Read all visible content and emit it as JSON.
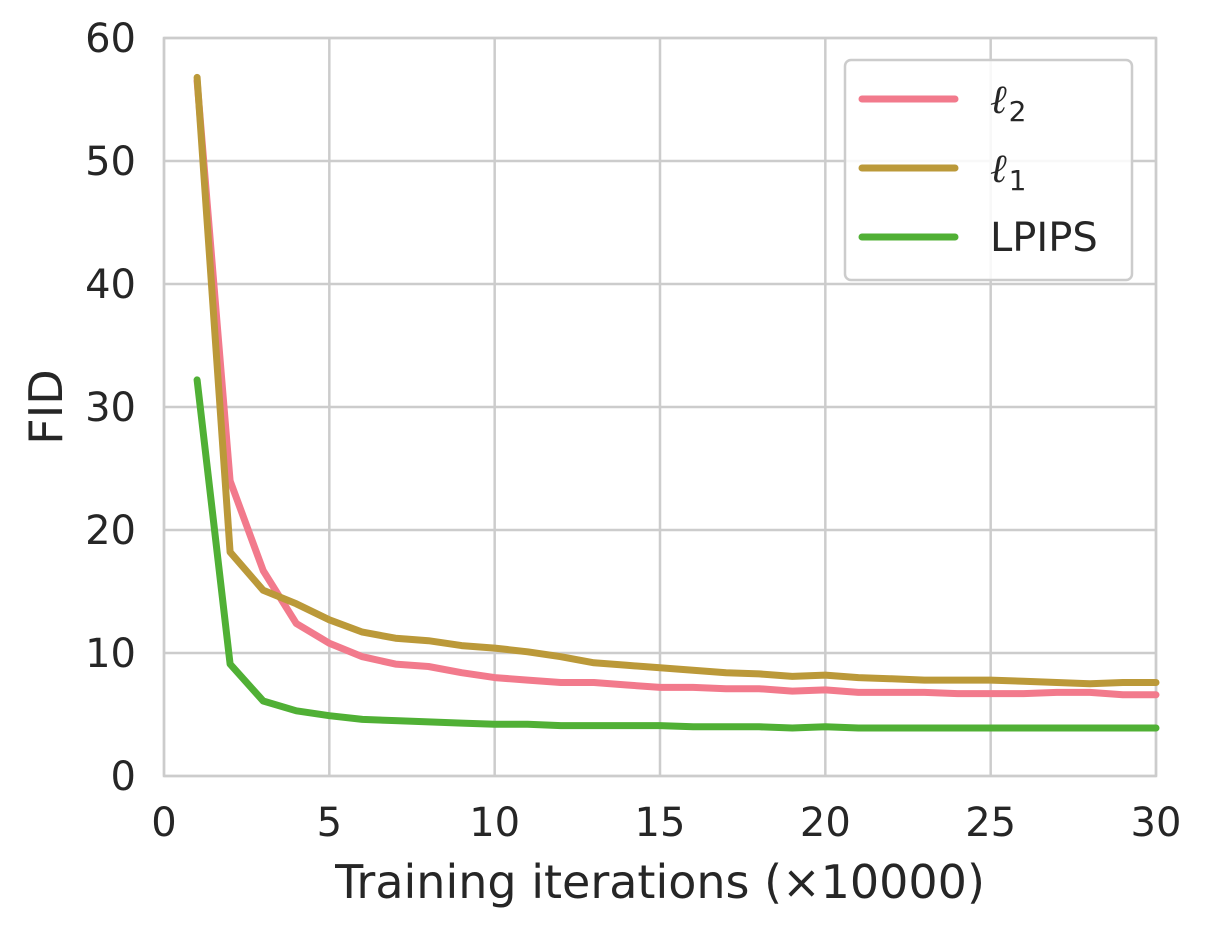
{
  "chart_data": {
    "type": "line",
    "title": "",
    "xlabel": "Training iterations (×10000)",
    "ylabel": "FID",
    "xlim": [
      0,
      30
    ],
    "ylim": [
      0,
      60
    ],
    "xticks": [
      "0",
      "5",
      "10",
      "15",
      "20",
      "25",
      "30"
    ],
    "yticks": [
      "0",
      "10",
      "20",
      "30",
      "40",
      "50",
      "60"
    ],
    "grid": true,
    "legend_position": "top-right",
    "x": [
      1,
      2,
      3,
      4,
      5,
      6,
      7,
      8,
      9,
      10,
      11,
      12,
      13,
      14,
      15,
      16,
      17,
      18,
      19,
      20,
      21,
      22,
      23,
      24,
      25,
      26,
      27,
      28,
      29,
      30
    ],
    "series": [
      {
        "name": "ℓ2",
        "name_base": "ℓ",
        "name_sub": "2",
        "color": "#f27a8c",
        "values": [
          56.5,
          24.0,
          16.7,
          12.4,
          10.8,
          9.7,
          9.1,
          8.9,
          8.4,
          8.0,
          7.8,
          7.6,
          7.6,
          7.4,
          7.2,
          7.2,
          7.1,
          7.1,
          6.9,
          7.0,
          6.8,
          6.8,
          6.8,
          6.7,
          6.7,
          6.7,
          6.8,
          6.8,
          6.6,
          6.6
        ]
      },
      {
        "name": "ℓ1",
        "name_base": "ℓ",
        "name_sub": "1",
        "color": "#bb9939",
        "values": [
          56.8,
          18.2,
          15.1,
          14.0,
          12.7,
          11.7,
          11.2,
          11.0,
          10.6,
          10.4,
          10.1,
          9.7,
          9.2,
          9.0,
          8.8,
          8.6,
          8.4,
          8.3,
          8.1,
          8.2,
          8.0,
          7.9,
          7.8,
          7.8,
          7.8,
          7.7,
          7.6,
          7.5,
          7.6,
          7.6
        ]
      },
      {
        "name": "LPIPS",
        "name_base": "LPIPS",
        "name_sub": "",
        "color": "#50b035",
        "values": [
          32.2,
          9.1,
          6.1,
          5.3,
          4.9,
          4.6,
          4.5,
          4.4,
          4.3,
          4.2,
          4.2,
          4.1,
          4.1,
          4.1,
          4.1,
          4.0,
          4.0,
          4.0,
          3.9,
          4.0,
          3.9,
          3.9,
          3.9,
          3.9,
          3.9,
          3.9,
          3.9,
          3.9,
          3.9,
          3.9
        ]
      }
    ]
  }
}
